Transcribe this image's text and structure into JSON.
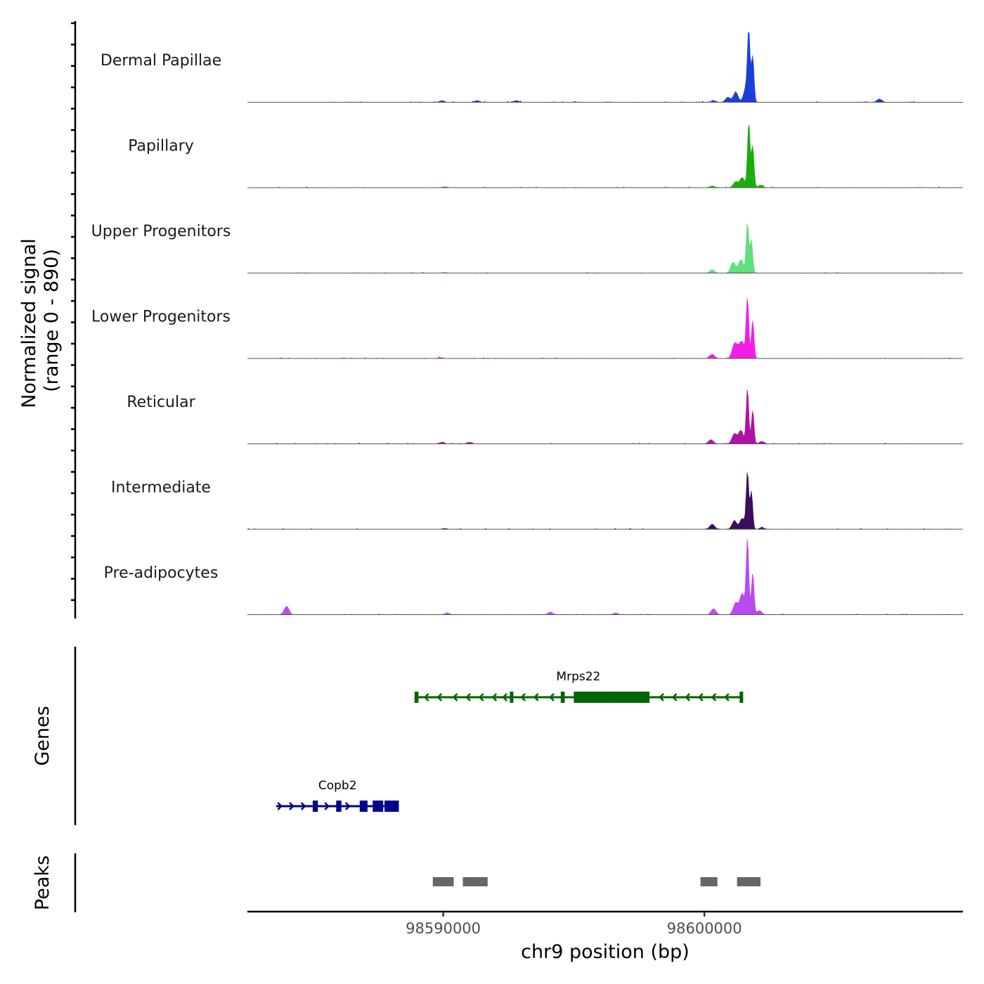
{
  "chart_data": {
    "type": "area",
    "description_chromosome": "chr9",
    "x_range_bp": [
      98582500,
      98609900
    ],
    "y_axis_title": [
      "Normalized signal",
      "(range 0 - 890)"
    ],
    "x_axis_title": "chr9 position (bp)",
    "x_ticks": [
      {
        "value": 98590000,
        "label": "98590000"
      },
      {
        "value": 98600000,
        "label": "98600000"
      }
    ],
    "tracks": [
      {
        "name": "Dermal Papillae",
        "color": "#1a3fd9",
        "main_peak": 0.78,
        "peaks": [
          [
            98600350,
            0.02
          ],
          [
            98600900,
            0.06
          ],
          [
            98601200,
            0.12
          ],
          [
            98601600,
            0.18
          ],
          [
            98601700,
            0.78
          ],
          [
            98601850,
            0.55
          ],
          [
            98606700,
            0.04
          ],
          [
            98589950,
            0.02
          ],
          [
            98591300,
            0.02
          ],
          [
            98592800,
            0.02
          ]
        ]
      },
      {
        "name": "Papillary",
        "color": "#1aad0d",
        "main_peak": 0.78,
        "peaks": [
          [
            98600300,
            0.02
          ],
          [
            98601200,
            0.07
          ],
          [
            98601450,
            0.12
          ],
          [
            98601700,
            0.78
          ],
          [
            98601850,
            0.5
          ],
          [
            98602150,
            0.03
          ],
          [
            98590050,
            0.01
          ]
        ]
      },
      {
        "name": "Upper Progenitors",
        "color": "#5fe07a",
        "main_peak": 0.6,
        "peaks": [
          [
            98600300,
            0.04
          ],
          [
            98601100,
            0.13
          ],
          [
            98601400,
            0.16
          ],
          [
            98601650,
            0.6
          ],
          [
            98601800,
            0.4
          ],
          [
            98590050,
            0.01
          ]
        ]
      },
      {
        "name": "Lower Progenitors",
        "color": "#f01ee4",
        "main_peak": 0.72,
        "peaks": [
          [
            98600300,
            0.05
          ],
          [
            98601150,
            0.16
          ],
          [
            98601450,
            0.18
          ],
          [
            98601650,
            0.72
          ],
          [
            98601850,
            0.45
          ],
          [
            98601300,
            0.08
          ],
          [
            98589900,
            0.01
          ]
        ]
      },
      {
        "name": "Reticular",
        "color": "#b012a6",
        "main_peak": 0.66,
        "peaks": [
          [
            98600250,
            0.05
          ],
          [
            98601150,
            0.12
          ],
          [
            98601400,
            0.16
          ],
          [
            98601650,
            0.66
          ],
          [
            98601850,
            0.4
          ],
          [
            98602200,
            0.03
          ],
          [
            98589950,
            0.02
          ],
          [
            98591000,
            0.02
          ]
        ]
      },
      {
        "name": "Intermediate",
        "color": "#3a0e5e",
        "main_peak": 0.68,
        "peaks": [
          [
            98600300,
            0.06
          ],
          [
            98601150,
            0.1
          ],
          [
            98601450,
            0.13
          ],
          [
            98601650,
            0.68
          ],
          [
            98601800,
            0.45
          ],
          [
            98602200,
            0.02
          ],
          [
            98590050,
            0.01
          ]
        ]
      },
      {
        "name": "Pre-adipocytes",
        "color": "#b94af0",
        "main_peak": 0.9,
        "peaks": [
          [
            98584000,
            0.1
          ],
          [
            98600350,
            0.07
          ],
          [
            98601200,
            0.14
          ],
          [
            98601450,
            0.25
          ],
          [
            98601650,
            0.9
          ],
          [
            98601850,
            0.5
          ],
          [
            98602100,
            0.05
          ],
          [
            98590150,
            0.02
          ],
          [
            98594100,
            0.03
          ],
          [
            98596600,
            0.02
          ]
        ]
      }
    ],
    "genes": [
      {
        "name": "Mrps22",
        "strand": "-",
        "color": "#006400",
        "start": 98588900,
        "end": 98601450,
        "exons": [
          [
            98588900,
            98589050
          ],
          [
            98592550,
            98592650
          ],
          [
            98594500,
            98594650
          ],
          [
            98595000,
            98596500
          ],
          [
            98596500,
            98597900
          ],
          [
            98601350,
            98601450
          ]
        ],
        "intron_arrows": [
          98589300,
          98589800,
          98590400,
          98590900,
          98591400,
          98591900,
          98592300,
          98593000,
          98593500,
          98594100,
          98598300,
          98598800,
          98599300,
          98599800,
          98600300,
          98600800
        ]
      },
      {
        "name": "Copb2",
        "strand": "+",
        "color": "#00008b",
        "start": 98583600,
        "end": 98588300,
        "exons": [
          [
            98585000,
            98585200
          ],
          [
            98585900,
            98586100
          ],
          [
            98586800,
            98587100
          ],
          [
            98587300,
            98587700
          ],
          [
            98587750,
            98588300
          ]
        ],
        "intron_arrows": [
          98583800,
          98584250,
          98584700,
          98585600,
          98586400
        ]
      }
    ],
    "peaks_track": [
      [
        98589600,
        98590400
      ],
      [
        98590750,
        98591700
      ],
      [
        98599850,
        98600500
      ],
      [
        98601250,
        98602150
      ]
    ],
    "track_labels": {
      "genes": "Genes",
      "peaks": "Peaks"
    }
  }
}
